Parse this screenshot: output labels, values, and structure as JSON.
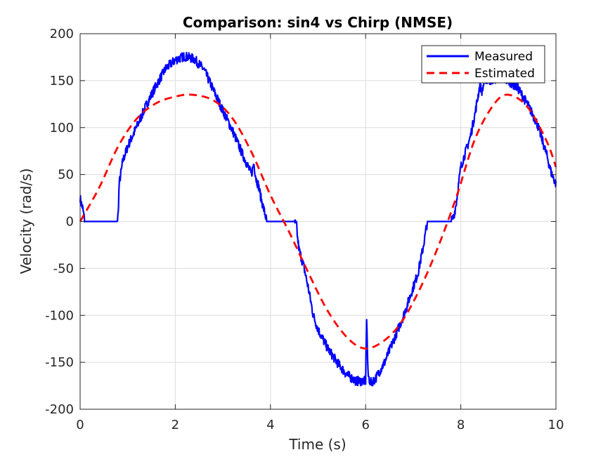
{
  "chart_data": {
    "type": "line",
    "title": "Comparison: sin4 vs Chirp (NMSE)",
    "xlabel": "Time (s)",
    "ylabel": "Velocity (rad/s)",
    "xlim": [
      0,
      10
    ],
    "ylim": [
      -200,
      200
    ],
    "xticks": [
      0,
      2,
      4,
      6,
      8,
      10
    ],
    "yticks": [
      -200,
      -150,
      -100,
      -50,
      0,
      50,
      100,
      150,
      200
    ],
    "xtick_labels": [
      "0",
      "2",
      "4",
      "6",
      "8",
      "10"
    ],
    "ytick_labels": [
      "-200",
      "-150",
      "-100",
      "-50",
      "0",
      "50",
      "100",
      "150",
      "200"
    ],
    "grid": true,
    "legend_position": "top-right",
    "series": [
      {
        "name": "Measured",
        "color": "#0000ff",
        "style": "solid",
        "noise_amplitude": 5,
        "x": [
          0,
          0.02,
          0.05,
          0.1,
          0.7,
          0.78,
          0.8,
          0.82,
          0.9,
          1.0,
          1.2,
          1.4,
          1.6,
          1.8,
          2.0,
          2.2,
          2.4,
          2.6,
          2.8,
          3.0,
          3.2,
          3.4,
          3.5,
          3.6,
          3.65,
          3.7,
          3.75,
          3.8,
          3.9,
          3.92,
          3.95,
          4.0,
          4.5,
          4.55,
          4.57,
          4.6,
          4.7,
          4.8,
          4.9,
          5.0,
          5.2,
          5.4,
          5.6,
          5.8,
          6.0,
          6.02,
          6.05,
          6.1,
          6.2,
          6.4,
          6.6,
          6.8,
          7.0,
          7.1,
          7.2,
          7.25,
          7.28,
          7.3,
          7.35,
          7.8,
          7.85,
          7.9,
          8.0,
          8.2,
          8.3,
          8.35,
          8.4,
          8.45,
          8.5,
          8.6,
          8.8,
          9.0,
          9.2,
          9.4,
          9.6,
          9.8,
          9.9,
          10.0
        ],
        "y": [
          25,
          20,
          15,
          0,
          0,
          0,
          8,
          40,
          65,
          80,
          102,
          125,
          145,
          163,
          172,
          176,
          173,
          162,
          140,
          118,
          97,
          73,
          62,
          50,
          62,
          45,
          38,
          25,
          5,
          0,
          0,
          0,
          0,
          -5,
          -18,
          -30,
          -48,
          -72,
          -100,
          -115,
          -135,
          -150,
          -163,
          -170,
          -170,
          -100,
          -163,
          -172,
          -168,
          -150,
          -125,
          -100,
          -70,
          -55,
          -30,
          -15,
          -5,
          0,
          0,
          0,
          5,
          18,
          58,
          90,
          115,
          130,
          145,
          138,
          152,
          150,
          153,
          150,
          142,
          125,
          105,
          72,
          52,
          40
        ]
      },
      {
        "name": "Estimated",
        "color": "#ff0000",
        "style": "dashed",
        "x": [
          0,
          0.4,
          0.8,
          1.2,
          1.6,
          2.0,
          2.35,
          2.8,
          3.2,
          3.6,
          4.0,
          4.4,
          4.8,
          5.2,
          5.6,
          5.95,
          6.3,
          6.7,
          7.1,
          7.5,
          7.9,
          8.3,
          8.7,
          9.0,
          9.4,
          9.8,
          10.0
        ],
        "y": [
          0,
          36,
          80,
          110,
          126,
          133,
          135,
          129,
          110,
          74,
          28,
          -12,
          -55,
          -95,
          -123,
          -135,
          -130,
          -111,
          -76,
          -30,
          25,
          88,
          125,
          135,
          122,
          86,
          58
        ]
      }
    ]
  }
}
